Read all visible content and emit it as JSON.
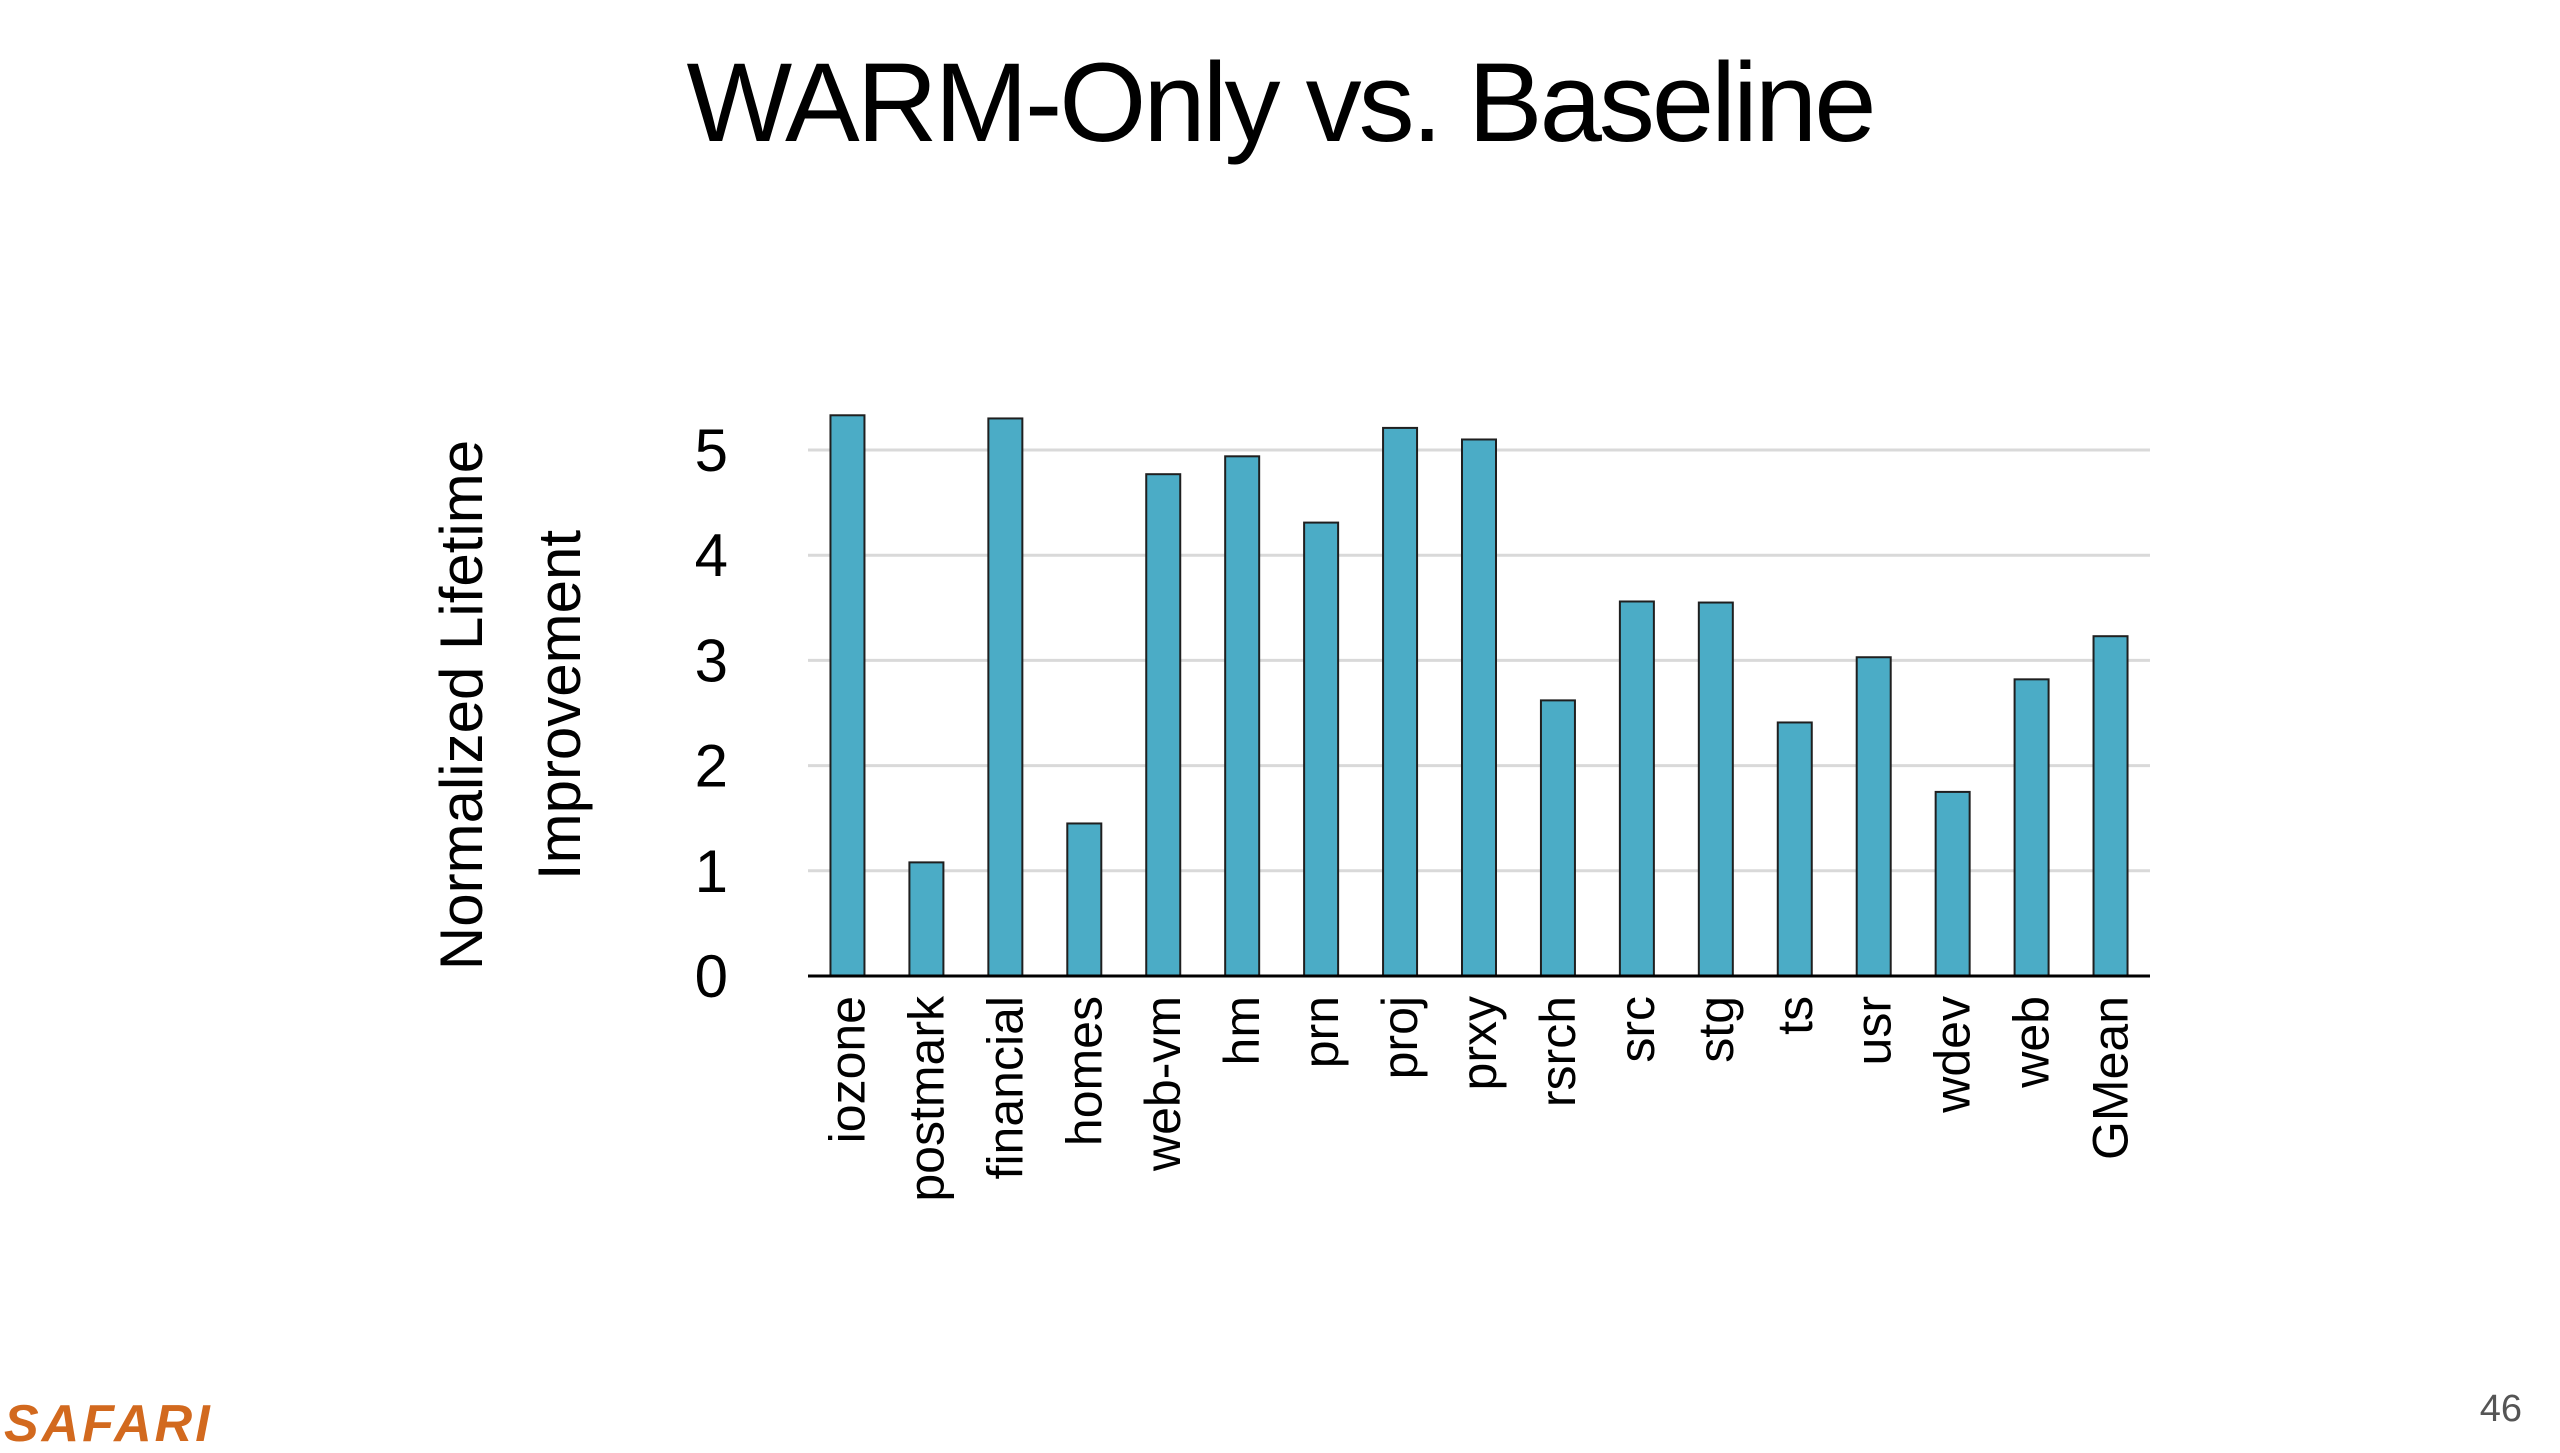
{
  "slide": {
    "title": "WARM-Only vs. Baseline",
    "logo": "SAFARI",
    "page_number": "46"
  },
  "colors": {
    "bar_fill": "#4bacc6",
    "bar_stroke": "#1f1f1f",
    "grid": "#d9d9d9",
    "axis": "#000000",
    "logo": "#d2691e"
  },
  "chart_data": {
    "type": "bar",
    "title": "",
    "ylabel": [
      "Normalized Lifetime",
      "Improvement"
    ],
    "xlabel": "",
    "ylim": [
      0,
      5
    ],
    "yticks": [
      0,
      1,
      2,
      3,
      4,
      5
    ],
    "grid": "horizontal",
    "categories": [
      "iozone",
      "postmark",
      "financial",
      "homes",
      "web-vm",
      "hm",
      "prn",
      "proj",
      "prxy",
      "rsrch",
      "src",
      "stg",
      "ts",
      "usr",
      "wdev",
      "web",
      "GMean"
    ],
    "values": [
      5.33,
      1.08,
      5.3,
      1.45,
      4.77,
      4.94,
      4.31,
      5.21,
      5.1,
      2.62,
      3.56,
      3.55,
      2.41,
      3.03,
      1.75,
      2.82,
      3.23
    ]
  }
}
